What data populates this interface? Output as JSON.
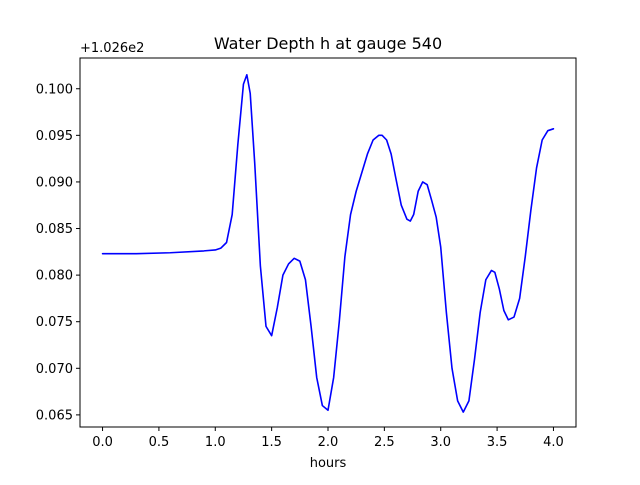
{
  "chart_data": {
    "type": "line",
    "title": "Water Depth h at gauge 540",
    "xlabel": "hours",
    "ylabel": "",
    "offset_label": "+1.026e2",
    "xlim": [
      -0.2,
      4.2
    ],
    "ylim": [
      0.0637,
      0.1033
    ],
    "xticks": [
      0.0,
      0.5,
      1.0,
      1.5,
      2.0,
      2.5,
      3.0,
      3.5,
      4.0
    ],
    "xtick_labels": [
      "0.0",
      "0.5",
      "1.0",
      "1.5",
      "2.0",
      "2.5",
      "3.0",
      "3.5",
      "4.0"
    ],
    "yticks": [
      0.065,
      0.07,
      0.075,
      0.08,
      0.085,
      0.09,
      0.095,
      0.1
    ],
    "ytick_labels": [
      "0.065",
      "0.070",
      "0.075",
      "0.080",
      "0.085",
      "0.090",
      "0.095",
      "0.100"
    ],
    "grid": false,
    "series": [
      {
        "color": "#0000ff",
        "x": [
          0.0,
          0.3,
          0.6,
          0.9,
          1.0,
          1.05,
          1.1,
          1.15,
          1.2,
          1.25,
          1.28,
          1.31,
          1.35,
          1.4,
          1.45,
          1.5,
          1.55,
          1.6,
          1.65,
          1.7,
          1.75,
          1.8,
          1.85,
          1.9,
          1.95,
          2.0,
          2.05,
          2.1,
          2.15,
          2.2,
          2.25,
          2.3,
          2.35,
          2.4,
          2.45,
          2.48,
          2.52,
          2.56,
          2.6,
          2.65,
          2.7,
          2.73,
          2.76,
          2.8,
          2.84,
          2.88,
          2.92,
          2.96,
          3.0,
          3.05,
          3.1,
          3.15,
          3.2,
          3.25,
          3.3,
          3.35,
          3.4,
          3.45,
          3.48,
          3.52,
          3.56,
          3.6,
          3.65,
          3.7,
          3.75,
          3.8,
          3.85,
          3.9,
          3.95,
          4.0
        ],
        "y": [
          0.0823,
          0.0823,
          0.0824,
          0.0826,
          0.0827,
          0.0829,
          0.0835,
          0.0865,
          0.094,
          0.1005,
          0.1015,
          0.0995,
          0.092,
          0.081,
          0.0745,
          0.0735,
          0.0765,
          0.08,
          0.0812,
          0.0818,
          0.0815,
          0.0795,
          0.0745,
          0.069,
          0.066,
          0.0655,
          0.069,
          0.075,
          0.082,
          0.0865,
          0.089,
          0.091,
          0.093,
          0.0945,
          0.095,
          0.095,
          0.0945,
          0.093,
          0.0905,
          0.0875,
          0.086,
          0.0858,
          0.0865,
          0.089,
          0.09,
          0.0897,
          0.088,
          0.0862,
          0.083,
          0.076,
          0.07,
          0.0665,
          0.0653,
          0.0665,
          0.071,
          0.076,
          0.0795,
          0.0805,
          0.0803,
          0.0785,
          0.0762,
          0.0752,
          0.0755,
          0.0775,
          0.082,
          0.087,
          0.0915,
          0.0945,
          0.0955,
          0.0957
        ]
      }
    ]
  }
}
